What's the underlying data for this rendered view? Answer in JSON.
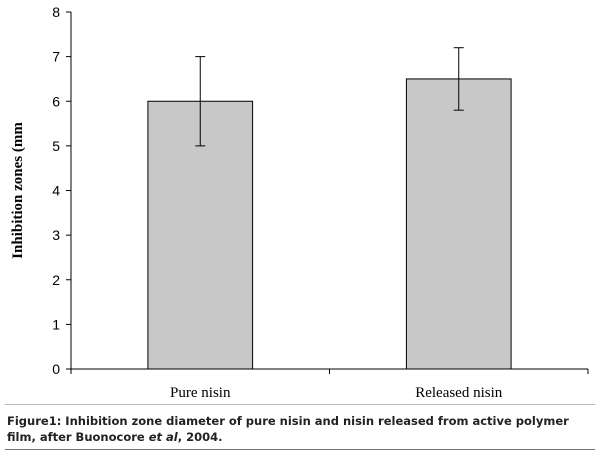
{
  "chart_data": {
    "type": "bar",
    "categories": [
      "Pure nisin",
      "Released nisin"
    ],
    "values": [
      6.0,
      6.5
    ],
    "error_low": [
      5.0,
      5.8
    ],
    "error_high": [
      7.0,
      7.2
    ],
    "ylabel": "Inhibition zones (mm",
    "xlabel": "",
    "ylim": [
      0,
      8
    ],
    "yticks": [
      0,
      1,
      2,
      3,
      4,
      5,
      6,
      7,
      8
    ],
    "grid": false,
    "bar_color": "#c8c8c8",
    "bar_edge_color": "#000000"
  },
  "caption": {
    "prefix": "Figure1: Inhibition zone diameter of pure nisin and nisin released from active polymer film, after Buonocore ",
    "italic": "et al",
    "suffix": ", 2004."
  }
}
